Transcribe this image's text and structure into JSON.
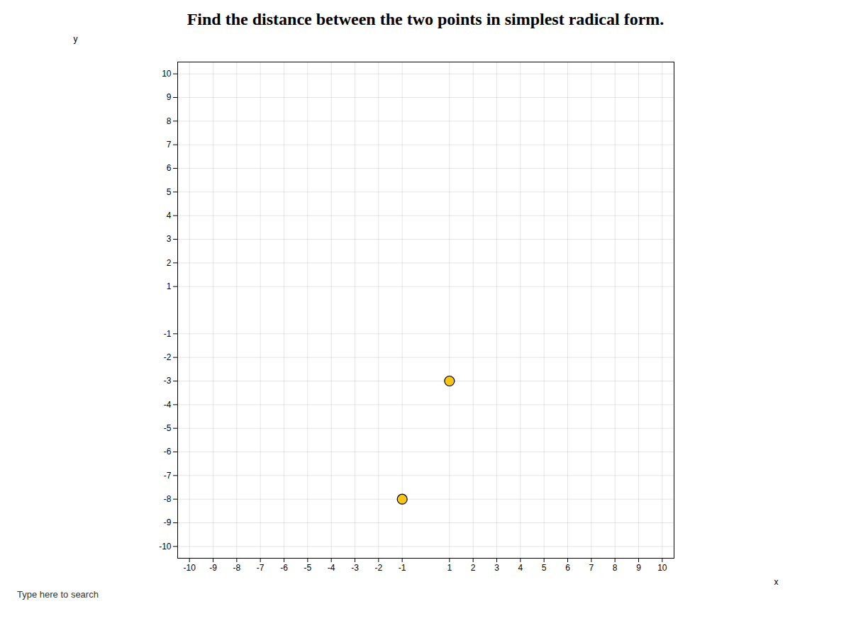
{
  "chart_data": {
    "type": "scatter",
    "title": "Find the distance between the two points in simplest radical form.",
    "x": [
      1,
      -1
    ],
    "values": [
      -3,
      -8
    ],
    "color": "#f5c518",
    "marker": "circle",
    "xlabel": "x",
    "ylabel": "y",
    "xlim": [
      -10.5,
      10.5
    ],
    "ylim": [
      -10.5,
      10.5
    ],
    "xticks": [
      -10,
      -9,
      -8,
      -7,
      -6,
      -5,
      -4,
      -3,
      -2,
      -1,
      1,
      2,
      3,
      4,
      5,
      6,
      7,
      8,
      9,
      10
    ],
    "yticks": [
      -10,
      -9,
      -8,
      -7,
      -6,
      -5,
      -4,
      -3,
      -2,
      -1,
      1,
      2,
      3,
      4,
      5,
      6,
      7,
      8,
      9,
      10
    ],
    "grid": true,
    "annotations": [
      "Type here to search"
    ]
  }
}
